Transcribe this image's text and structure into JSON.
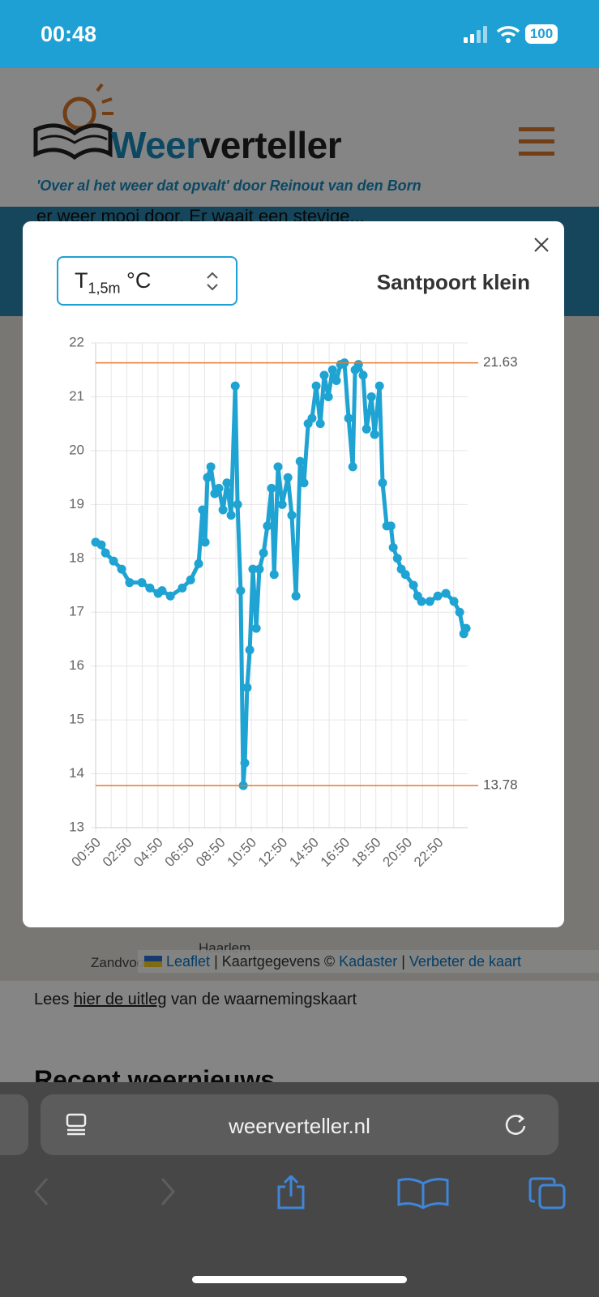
{
  "status_bar": {
    "time": "00:48",
    "battery": "100"
  },
  "header": {
    "brand_1": "Weer",
    "brand_2": "verteller",
    "tagline": "'Over al het weer dat opvalt' door Reinout van den Born"
  },
  "background": {
    "snippet": "er weer mooi door. Er waait een stevige...",
    "map_labels": [
      "Zandvoort",
      "Haarlem"
    ],
    "attribution": [
      "Leaflet",
      "|",
      "Kaartgegevens ©",
      "Kadaster",
      "|",
      "Verbeter de kaart"
    ],
    "note": [
      "Lees",
      "hier de uitleg",
      "van de waarnemingskaart"
    ],
    "section_title": "Recent weernieuws"
  },
  "modal": {
    "select": {
      "symbol": "T",
      "subscript": "1,5m",
      "unit": "°C"
    },
    "station": "Santpoort klein"
  },
  "chart_data": {
    "type": "line",
    "color": "#1ea3d2",
    "markers": true,
    "grid": true,
    "x": [
      50,
      72,
      88,
      119,
      150,
      181,
      228,
      259,
      291,
      306,
      338,
      384,
      416,
      447,
      462,
      472,
      481,
      494,
      509,
      525,
      541,
      556,
      572,
      588,
      597,
      609,
      619,
      625,
      634,
      644,
      656,
      669,
      681,
      697,
      712,
      728,
      738,
      753,
      769,
      791,
      806,
      822,
      838,
      853,
      869,
      884,
      900,
      916,
      931,
      947,
      963,
      978,
      994,
      1009,
      1025,
      1041,
      1050,
      1063,
      1081,
      1094,
      1113,
      1125,
      1144,
      1156,
      1172,
      1188,
      1197,
      1213,
      1228,
      1244,
      1275,
      1291,
      1306,
      1338,
      1369,
      1400,
      1431,
      1453,
      1469,
      1478
    ],
    "values": [
      18.3,
      18.25,
      18.1,
      17.95,
      17.8,
      17.55,
      17.55,
      17.45,
      17.35,
      17.4,
      17.3,
      17.45,
      17.6,
      17.9,
      18.9,
      18.3,
      19.5,
      19.7,
      19.2,
      19.3,
      18.9,
      19.4,
      18.8,
      21.2,
      19.0,
      17.4,
      13.78,
      14.2,
      15.6,
      16.3,
      17.8,
      16.7,
      17.8,
      18.1,
      18.6,
      19.3,
      17.7,
      19.7,
      19.0,
      19.5,
      18.8,
      17.3,
      19.8,
      19.4,
      20.5,
      20.6,
      21.2,
      20.5,
      21.4,
      21.0,
      21.5,
      21.3,
      21.6,
      21.63,
      20.6,
      19.7,
      21.5,
      21.6,
      21.4,
      20.4,
      21.0,
      20.3,
      21.2,
      19.4,
      18.6,
      18.6,
      18.2,
      18.0,
      17.8,
      17.7,
      17.5,
      17.3,
      17.2,
      17.2,
      17.3,
      17.35,
      17.2,
      17.0,
      16.6,
      16.7
    ],
    "xlim": [
      50,
      1484
    ],
    "ylim": [
      13,
      22
    ],
    "xticks": [
      {
        "value": 50,
        "label": "00:50"
      },
      {
        "value": 170,
        "label": "02:50"
      },
      {
        "value": 290,
        "label": "04:50"
      },
      {
        "value": 410,
        "label": "06:50"
      },
      {
        "value": 530,
        "label": "08:50"
      },
      {
        "value": 650,
        "label": "10:50"
      },
      {
        "value": 770,
        "label": "12:50"
      },
      {
        "value": 890,
        "label": "14:50"
      },
      {
        "value": 1010,
        "label": "16:50"
      },
      {
        "value": 1130,
        "label": "18:50"
      },
      {
        "value": 1250,
        "label": "20:50"
      },
      {
        "value": 1370,
        "label": "22:50"
      }
    ],
    "xminor": [
      110,
      230,
      350,
      470,
      590,
      710,
      830,
      950,
      1070,
      1190,
      1310,
      1430
    ],
    "yticks": [
      13,
      14,
      15,
      16,
      17,
      18,
      19,
      20,
      21,
      22
    ],
    "reference_lines": [
      {
        "value": 21.63,
        "color": "#e8792a"
      },
      {
        "value": 13.78,
        "color": "#e8792a"
      }
    ]
  },
  "browser": {
    "url": "weerverteller.nl"
  }
}
